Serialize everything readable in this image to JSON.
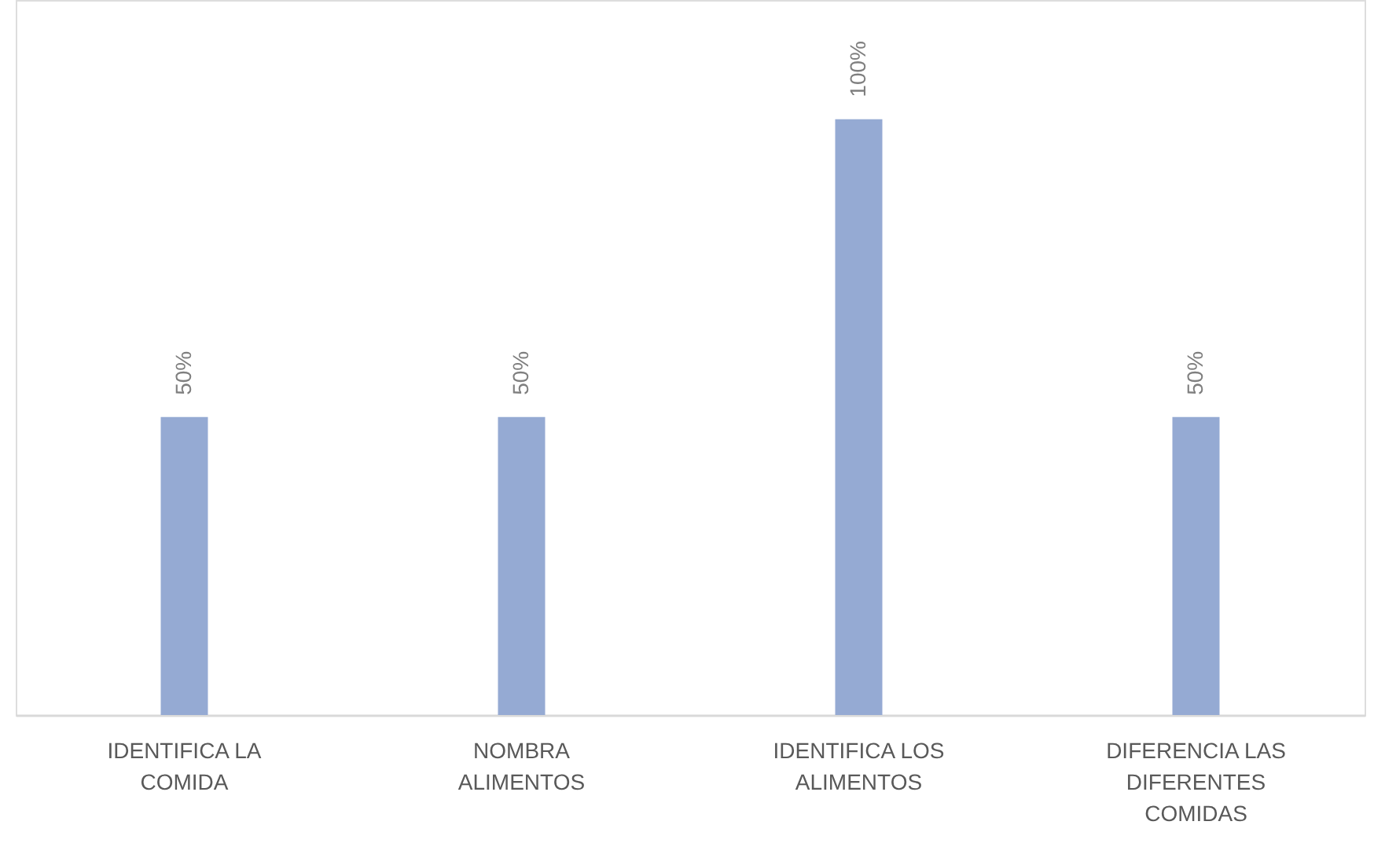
{
  "chart_data": {
    "type": "bar",
    "categories": [
      "IDENTIFICA LA COMIDA",
      "NOMBRA ALIMENTOS",
      "IDENTIFICA LOS ALIMENTOS",
      "DIFERENCIA LAS DIFERENTES COMIDAS"
    ],
    "values": [
      50,
      50,
      100,
      50
    ],
    "value_labels": [
      "50%",
      "50%",
      "100%",
      "50%"
    ],
    "color": "#95aad3",
    "ylim": [
      0,
      120
    ],
    "tick_labels": "x"
  }
}
